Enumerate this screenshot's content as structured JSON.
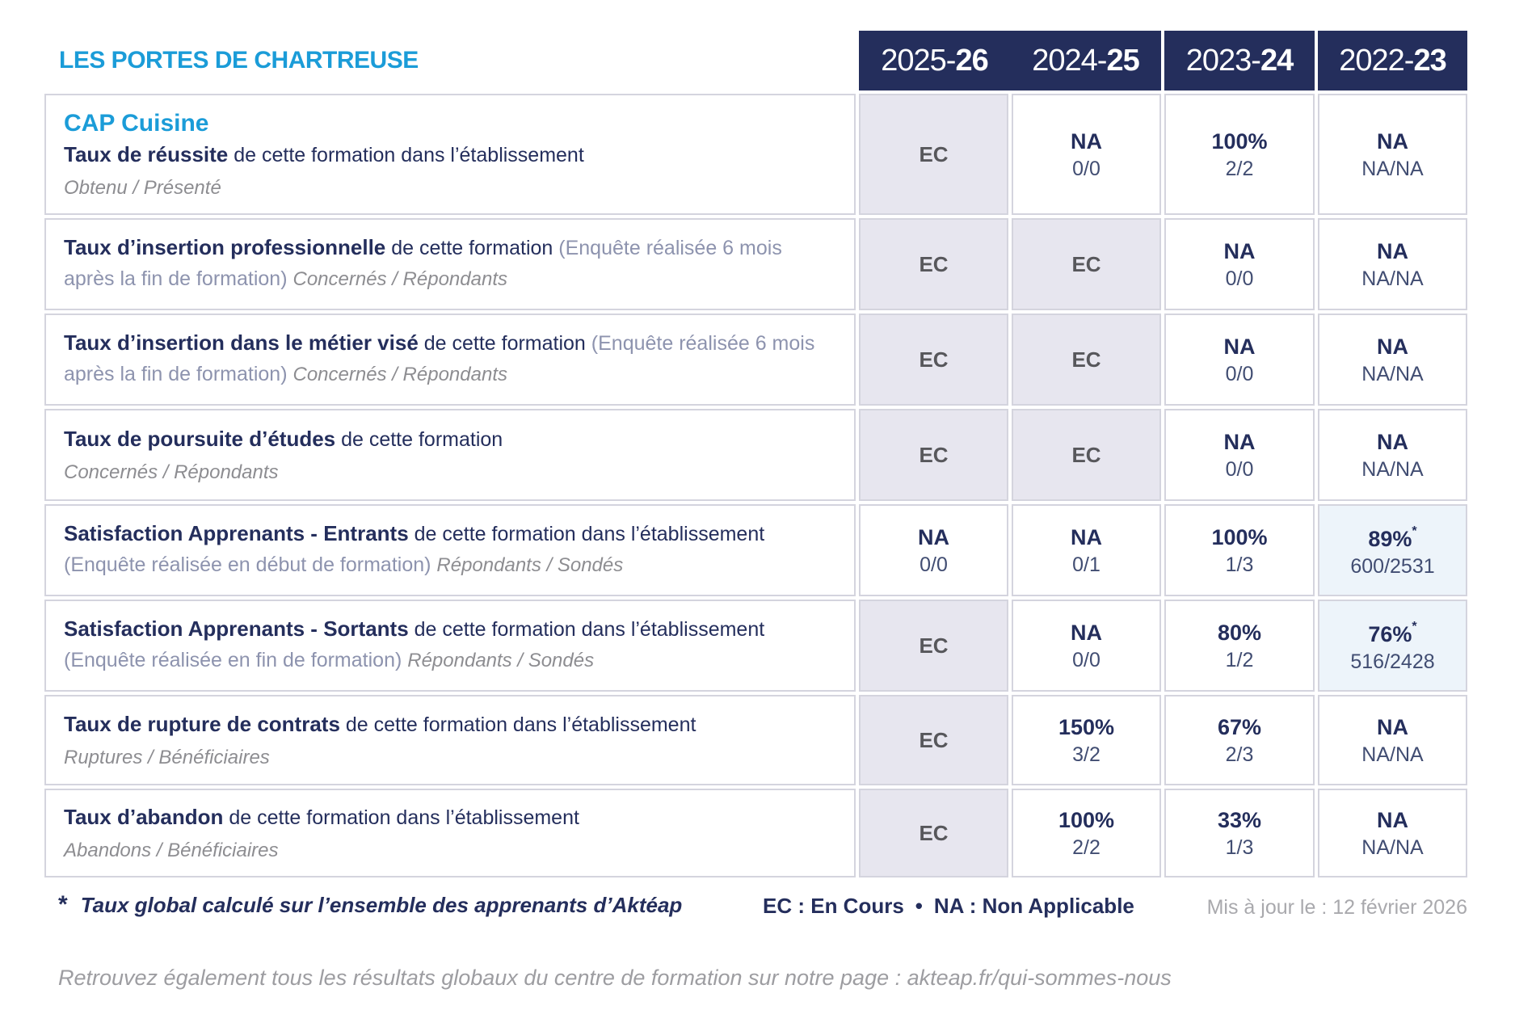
{
  "colors": {
    "accent": "#1b9cd8",
    "navy": "#242e5c",
    "header_bg": "#242e5c",
    "ec_bg": "#e7e6ef",
    "ec_text": "#57575b",
    "highlight_bg": "#edf4fa",
    "border": "#d4d4de",
    "gray_italic": "#8d8d91",
    "slate": "#8d93ae",
    "value_sub": "#414d72",
    "date_gray": "#a9a9ad",
    "bottom_gray": "#9d9da1"
  },
  "org_title": "LES PORTES DE CHARTREUSE",
  "header": {
    "columns": [
      {
        "prefix": "2025-",
        "bold": "26"
      },
      {
        "prefix": "2024-",
        "bold": "25"
      },
      {
        "prefix": "2023-",
        "bold": "24"
      },
      {
        "prefix": "2022-",
        "bold": "23"
      }
    ]
  },
  "rows": [
    {
      "program": "CAP Cuisine",
      "segments": [
        {
          "style": "bold",
          "text": "Taux de réussite"
        },
        {
          "style": "normal",
          "text": " de cette formation dans l’établissement"
        }
      ],
      "subline": "Obtenu / Présenté",
      "cells": [
        {
          "value": "EC",
          "variant": "ec"
        },
        {
          "value": "NA",
          "sub": "0/0"
        },
        {
          "value": "100%",
          "sub": "2/2"
        },
        {
          "value": "NA",
          "sub": "NA/NA"
        }
      ]
    },
    {
      "segments": [
        {
          "style": "bold",
          "text": "Taux d’insertion professionnelle"
        },
        {
          "style": "normal",
          "text": " de cette formation "
        },
        {
          "style": "paren",
          "text": "(Enquête réalisée 6 mois après la fin de formation) "
        },
        {
          "style": "italic",
          "text": "Concernés / Répondants"
        }
      ],
      "cells": [
        {
          "value": "EC",
          "variant": "ec"
        },
        {
          "value": "EC",
          "variant": "ec"
        },
        {
          "value": "NA",
          "sub": "0/0"
        },
        {
          "value": "NA",
          "sub": "NA/NA"
        }
      ]
    },
    {
      "segments": [
        {
          "style": "bold",
          "text": "Taux d’insertion dans le métier visé"
        },
        {
          "style": "normal",
          "text": " de cette formation "
        },
        {
          "style": "paren",
          "text": "(Enquête réalisée 6 mois après la fin de formation) "
        },
        {
          "style": "italic",
          "text": "Concernés / Répondants"
        }
      ],
      "cells": [
        {
          "value": "EC",
          "variant": "ec"
        },
        {
          "value": "EC",
          "variant": "ec"
        },
        {
          "value": "NA",
          "sub": "0/0"
        },
        {
          "value": "NA",
          "sub": "NA/NA"
        }
      ]
    },
    {
      "segments": [
        {
          "style": "bold",
          "text": "Taux de poursuite d’études"
        },
        {
          "style": "normal",
          "text": " de cette formation"
        }
      ],
      "subline": "Concernés / Répondants",
      "cells": [
        {
          "value": "EC",
          "variant": "ec"
        },
        {
          "value": "EC",
          "variant": "ec"
        },
        {
          "value": "NA",
          "sub": "0/0"
        },
        {
          "value": "NA",
          "sub": "NA/NA"
        }
      ]
    },
    {
      "segments": [
        {
          "style": "bold",
          "text": "Satisfaction Apprenants - Entrants"
        },
        {
          "style": "normal",
          "text": " de cette formation dans l’établissement "
        },
        {
          "style": "paren",
          "text": "(Enquête réalisée en début de formation) "
        },
        {
          "style": "italic",
          "text": "Répondants / Sondés"
        }
      ],
      "cells": [
        {
          "value": "NA",
          "sub": "0/0"
        },
        {
          "value": "NA",
          "sub": "0/1"
        },
        {
          "value": "100%",
          "sub": "1/3"
        },
        {
          "value": "89%",
          "asterisk": true,
          "sub": "600/2531",
          "variant": "highlight"
        }
      ]
    },
    {
      "segments": [
        {
          "style": "bold",
          "text": "Satisfaction Apprenants - Sortants"
        },
        {
          "style": "normal",
          "text": " de cette formation dans l’établissement "
        },
        {
          "style": "paren",
          "text": "(Enquête réalisée en fin de formation) "
        },
        {
          "style": "italic",
          "text": "Répondants / Sondés"
        }
      ],
      "cells": [
        {
          "value": "EC",
          "variant": "ec"
        },
        {
          "value": "NA",
          "sub": "0/0"
        },
        {
          "value": "80%",
          "sub": "1/2"
        },
        {
          "value": "76%",
          "asterisk": true,
          "sub": "516/2428",
          "variant": "highlight"
        }
      ]
    },
    {
      "segments": [
        {
          "style": "bold",
          "text": "Taux de rupture de contrats"
        },
        {
          "style": "normal",
          "text": " de cette formation dans l’établissement"
        }
      ],
      "subline": "Ruptures / Bénéficiaires",
      "cells": [
        {
          "value": "EC",
          "variant": "ec"
        },
        {
          "value": "150%",
          "sub": "3/2"
        },
        {
          "value": "67%",
          "sub": "2/3"
        },
        {
          "value": "NA",
          "sub": "NA/NA"
        }
      ]
    },
    {
      "segments": [
        {
          "style": "bold",
          "text": "Taux d’abandon"
        },
        {
          "style": "normal",
          "text": " de cette formation dans l’établissement"
        }
      ],
      "subline": "Abandons / Bénéficiaires",
      "cells": [
        {
          "value": "EC",
          "variant": "ec"
        },
        {
          "value": "100%",
          "sub": "2/2"
        },
        {
          "value": "33%",
          "sub": "1/3"
        },
        {
          "value": "NA",
          "sub": "NA/NA"
        }
      ]
    }
  ],
  "footnote": {
    "star": "*",
    "text": "Taux global calculé sur l’ensemble des apprenants d’Aktéap"
  },
  "legend": {
    "ec": "EC : En Cours",
    "separator": "•",
    "na": "NA : Non Applicable"
  },
  "updated": "Mis à jour le : 12 février 2026",
  "bottom_note": "Retrouvez également tous les résultats globaux du centre de formation sur notre page : akteap.fr/qui-sommes-nous"
}
